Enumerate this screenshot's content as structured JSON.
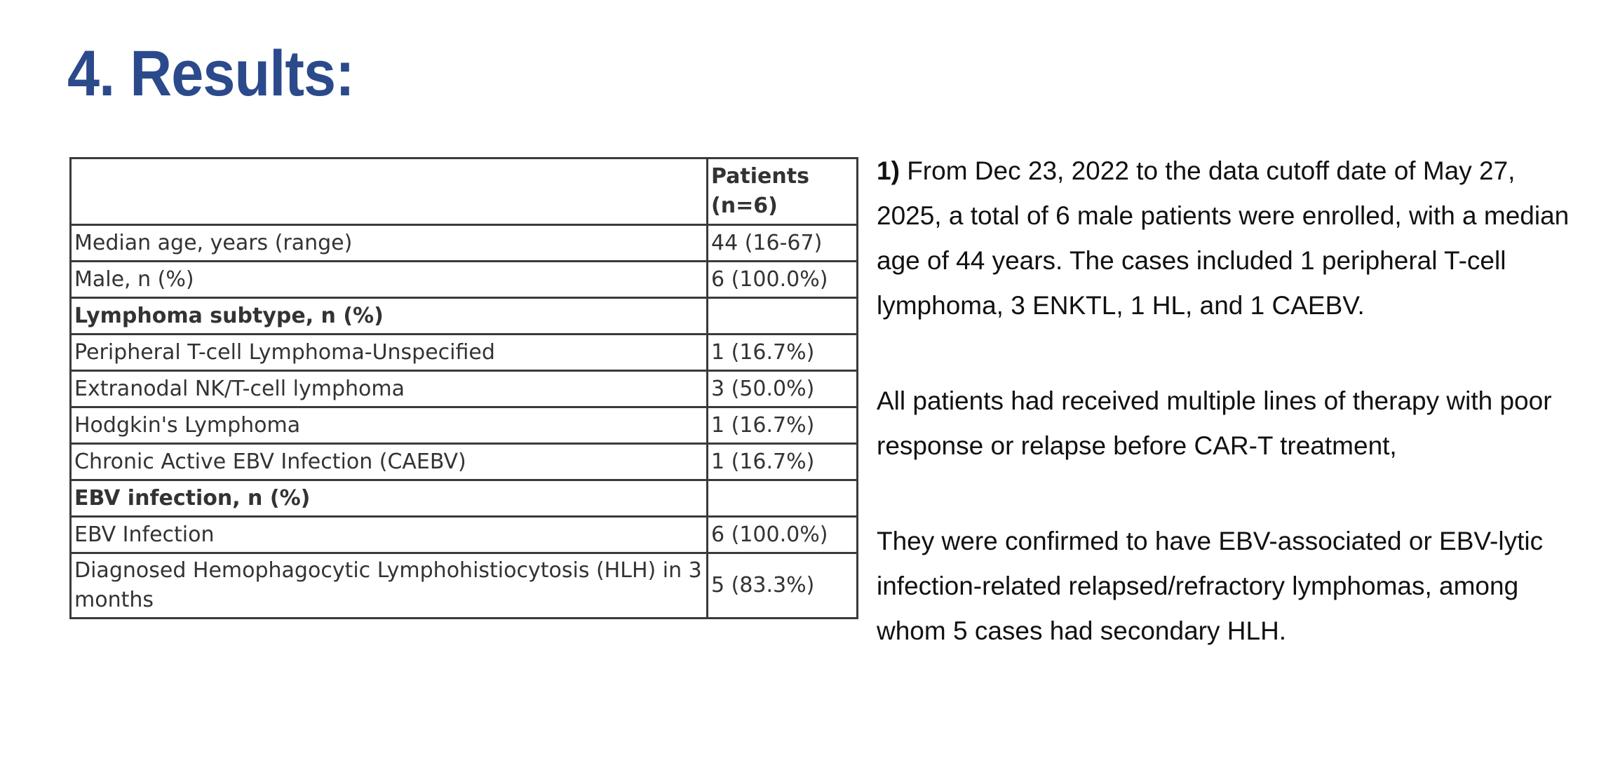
{
  "title": "4. Results:",
  "table": {
    "header": {
      "col1": "",
      "col2_line1": "Patients",
      "col2_line2": "(n=6)"
    },
    "rows": [
      {
        "label": "Median age, years (range)",
        "value": "44 (16-67)",
        "section": false
      },
      {
        "label": "Male, n (%)",
        "value": "6 (100.0%)",
        "section": false
      },
      {
        "label": "Lymphoma subtype, n (%)",
        "value": "",
        "section": true
      },
      {
        "label": "Peripheral T-cell Lymphoma-Unspecified",
        "value": "1 (16.7%)",
        "section": false
      },
      {
        "label": "Extranodal NK/T-cell lymphoma",
        "value": "3 (50.0%)",
        "section": false
      },
      {
        "label": "Hodgkin's Lymphoma",
        "value": "1 (16.7%)",
        "section": false
      },
      {
        "label": "Chronic Active EBV Infection (CAEBV)",
        "value": "1 (16.7%)",
        "section": false
      },
      {
        "label": "EBV infection, n (%)",
        "value": "",
        "section": true
      },
      {
        "label": "EBV Infection",
        "value": "6 (100.0%)",
        "section": false
      },
      {
        "label": "Diagnosed Hemophagocytic Lymphohistiocytosis (HLH) in 3 months",
        "value": "5 (83.3%)",
        "section": false
      }
    ]
  },
  "text": {
    "p1_number": "1)",
    "p1_body": "From Dec 23, 2022 to the data cutoff date of May 27, 2025, a total of 6 male patients were enrolled, with a median age of 44 years. The cases included 1 peripheral T-cell lymphoma, 3 ENKTL, 1 HL, and 1 CAEBV.",
    "p2": "All patients had received multiple lines of therapy with poor response or relapse before CAR-T treatment,",
    "p3": "They were confirmed to have EBV-associated or EBV-lytic infection-related relapsed/refractory lymphomas, among whom 5 cases had secondary HLH."
  }
}
